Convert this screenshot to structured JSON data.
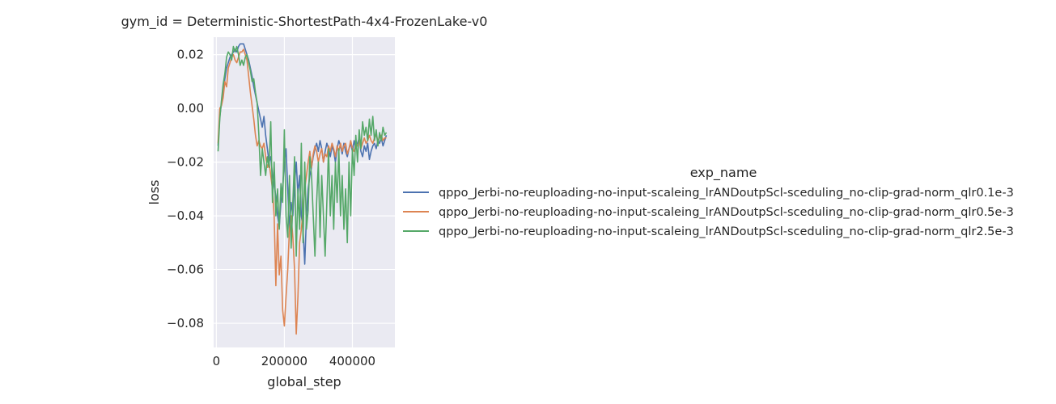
{
  "chart_data": {
    "type": "line",
    "title": "gym_id = Deterministic-ShortestPath-4x4-FrozenLake-v0",
    "xlabel": "global_step",
    "ylabel": "loss",
    "xlim": [
      -8000,
      525000
    ],
    "ylim": [
      -0.089,
      0.0265
    ],
    "xticks": [
      0,
      200000,
      400000
    ],
    "xtick_labels": [
      "0",
      "200000",
      "400000"
    ],
    "yticks": [
      0.02,
      0.0,
      -0.02,
      -0.04,
      -0.06,
      -0.08
    ],
    "ytick_labels": [
      "0.02",
      "0.00",
      "−0.02",
      "−0.04",
      "−0.06",
      "−0.08"
    ],
    "grid": true,
    "legend_title": "exp_name",
    "legend_position": "right",
    "series": [
      {
        "name": "qppo_Jerbi-no-reuploading-no-input-scaleing_lrANDoutpScl-sceduling_no-clip-grad-norm_qlr0.1e-3",
        "color": "#4c72b0",
        "x": [
          5000,
          10000,
          15000,
          20000,
          25000,
          30000,
          35000,
          40000,
          45000,
          50000,
          55000,
          60000,
          65000,
          70000,
          75000,
          80000,
          85000,
          90000,
          95000,
          100000,
          105000,
          110000,
          115000,
          120000,
          125000,
          130000,
          135000,
          140000,
          145000,
          150000,
          155000,
          160000,
          165000,
          170000,
          175000,
          180000,
          185000,
          190000,
          195000,
          200000,
          205000,
          210000,
          215000,
          220000,
          225000,
          230000,
          235000,
          240000,
          245000,
          250000,
          255000,
          260000,
          265000,
          270000,
          275000,
          280000,
          285000,
          290000,
          295000,
          300000,
          305000,
          310000,
          315000,
          320000,
          325000,
          330000,
          335000,
          340000,
          345000,
          350000,
          355000,
          360000,
          365000,
          370000,
          375000,
          380000,
          385000,
          390000,
          395000,
          400000,
          405000,
          410000,
          415000,
          420000,
          425000,
          430000,
          435000,
          440000,
          445000,
          450000,
          455000,
          460000,
          465000,
          470000,
          475000,
          480000,
          485000,
          490000,
          495000,
          500000
        ],
        "y": [
          -0.014,
          -0.003,
          0.002,
          0.006,
          0.011,
          0.015,
          0.017,
          0.019,
          0.02,
          0.021,
          0.022,
          0.021,
          0.023,
          0.024,
          0.024,
          0.024,
          0.022,
          0.02,
          0.018,
          0.015,
          0.012,
          0.008,
          0.005,
          0.002,
          -0.001,
          -0.004,
          -0.007,
          -0.003,
          -0.01,
          -0.015,
          -0.02,
          -0.018,
          -0.025,
          -0.028,
          -0.033,
          -0.04,
          -0.044,
          -0.035,
          -0.03,
          -0.02,
          -0.015,
          -0.03,
          -0.045,
          -0.035,
          -0.04,
          -0.028,
          -0.02,
          -0.032,
          -0.025,
          -0.04,
          -0.045,
          -0.058,
          -0.04,
          -0.03,
          -0.025,
          -0.022,
          -0.018,
          -0.015,
          -0.013,
          -0.016,
          -0.012,
          -0.015,
          -0.02,
          -0.016,
          -0.013,
          -0.015,
          -0.018,
          -0.014,
          -0.016,
          -0.02,
          -0.015,
          -0.012,
          -0.014,
          -0.017,
          -0.013,
          -0.016,
          -0.018,
          -0.015,
          -0.013,
          -0.016,
          -0.012,
          -0.015,
          -0.013,
          -0.011,
          -0.016,
          -0.018,
          -0.014,
          -0.016,
          -0.013,
          -0.019,
          -0.016,
          -0.014,
          -0.013,
          -0.015,
          -0.012,
          -0.013,
          -0.011,
          -0.014,
          -0.012,
          -0.01
        ]
      },
      {
        "name": "qppo_Jerbi-no-reuploading-no-input-scaleing_lrANDoutpScl-sceduling_no-clip-grad-norm_qlr0.5e-3",
        "color": "#dd8452",
        "x": [
          5000,
          10000,
          15000,
          20000,
          25000,
          30000,
          35000,
          40000,
          45000,
          50000,
          55000,
          60000,
          65000,
          70000,
          75000,
          80000,
          85000,
          90000,
          95000,
          100000,
          105000,
          110000,
          115000,
          120000,
          125000,
          130000,
          135000,
          140000,
          145000,
          150000,
          155000,
          160000,
          165000,
          170000,
          175000,
          180000,
          185000,
          190000,
          195000,
          200000,
          205000,
          210000,
          215000,
          220000,
          225000,
          230000,
          235000,
          240000,
          245000,
          250000,
          255000,
          260000,
          265000,
          270000,
          275000,
          280000,
          285000,
          290000,
          295000,
          300000,
          305000,
          310000,
          315000,
          320000,
          325000,
          330000,
          335000,
          340000,
          345000,
          350000,
          355000,
          360000,
          365000,
          370000,
          375000,
          380000,
          385000,
          390000,
          395000,
          400000,
          405000,
          410000,
          415000,
          420000,
          425000,
          430000,
          435000,
          440000,
          445000,
          450000,
          455000,
          460000,
          465000,
          470000,
          475000,
          480000,
          485000,
          490000,
          495000,
          500000
        ],
        "y": [
          -0.013,
          0.0,
          0.001,
          0.004,
          0.01,
          0.008,
          0.015,
          0.017,
          0.019,
          0.02,
          0.018,
          0.017,
          0.019,
          0.021,
          0.021,
          0.022,
          0.02,
          0.018,
          0.012,
          0.006,
          0.001,
          -0.004,
          -0.01,
          -0.014,
          -0.012,
          -0.014,
          -0.015,
          -0.013,
          -0.018,
          -0.022,
          -0.02,
          -0.025,
          -0.03,
          -0.04,
          -0.066,
          -0.043,
          -0.062,
          -0.055,
          -0.075,
          -0.081,
          -0.07,
          -0.06,
          -0.045,
          -0.04,
          -0.048,
          -0.06,
          -0.084,
          -0.07,
          -0.05,
          -0.045,
          -0.038,
          -0.03,
          -0.025,
          -0.02,
          -0.016,
          -0.022,
          -0.017,
          -0.014,
          -0.016,
          -0.02,
          -0.017,
          -0.015,
          -0.02,
          -0.017,
          -0.018,
          -0.014,
          -0.016,
          -0.013,
          -0.015,
          -0.018,
          -0.014,
          -0.016,
          -0.013,
          -0.016,
          -0.014,
          -0.013,
          -0.017,
          -0.015,
          -0.012,
          -0.015,
          -0.016,
          -0.013,
          -0.014,
          -0.012,
          -0.015,
          -0.013,
          -0.011,
          -0.013,
          -0.012,
          -0.01,
          -0.012,
          -0.013,
          -0.011,
          -0.01,
          -0.012,
          -0.011,
          -0.01,
          -0.012,
          -0.011,
          -0.011
        ]
      },
      {
        "name": "qppo_Jerbi-no-reuploading-no-input-scaleing_lrANDoutpScl-sceduling_no-clip-grad-norm_qlr2.5e-3",
        "color": "#55a868",
        "x": [
          5000,
          10000,
          15000,
          20000,
          25000,
          30000,
          35000,
          40000,
          45000,
          50000,
          55000,
          60000,
          65000,
          70000,
          75000,
          80000,
          85000,
          90000,
          95000,
          100000,
          105000,
          110000,
          115000,
          120000,
          125000,
          130000,
          135000,
          140000,
          145000,
          150000,
          155000,
          160000,
          165000,
          170000,
          175000,
          180000,
          185000,
          190000,
          195000,
          200000,
          205000,
          210000,
          215000,
          220000,
          225000,
          230000,
          235000,
          240000,
          245000,
          250000,
          255000,
          260000,
          265000,
          270000,
          275000,
          280000,
          285000,
          290000,
          295000,
          300000,
          305000,
          310000,
          315000,
          320000,
          325000,
          330000,
          335000,
          340000,
          345000,
          350000,
          355000,
          360000,
          365000,
          370000,
          375000,
          380000,
          385000,
          390000,
          395000,
          400000,
          405000,
          410000,
          415000,
          420000,
          425000,
          430000,
          435000,
          440000,
          445000,
          450000,
          455000,
          460000,
          465000,
          470000,
          475000,
          480000,
          485000,
          490000,
          495000,
          500000
        ],
        "y": [
          -0.016,
          -0.004,
          0.003,
          0.009,
          0.013,
          0.019,
          0.021,
          0.02,
          0.018,
          0.023,
          0.021,
          0.023,
          0.02,
          0.016,
          0.018,
          0.016,
          0.019,
          0.02,
          0.017,
          0.014,
          0.01,
          0.011,
          0.006,
          0.002,
          -0.01,
          -0.025,
          -0.015,
          -0.02,
          -0.025,
          -0.018,
          -0.022,
          -0.005,
          -0.035,
          -0.02,
          -0.04,
          -0.03,
          -0.045,
          -0.028,
          -0.035,
          -0.008,
          -0.04,
          -0.048,
          -0.025,
          -0.052,
          -0.035,
          -0.018,
          -0.055,
          -0.03,
          -0.045,
          -0.013,
          -0.05,
          -0.02,
          -0.045,
          -0.038,
          -0.018,
          -0.025,
          -0.04,
          -0.055,
          -0.035,
          -0.02,
          -0.048,
          -0.025,
          -0.04,
          -0.055,
          -0.035,
          -0.015,
          -0.04,
          -0.025,
          -0.045,
          -0.02,
          -0.035,
          -0.015,
          -0.04,
          -0.025,
          -0.045,
          -0.03,
          -0.05,
          -0.02,
          -0.04,
          -0.015,
          -0.025,
          -0.01,
          -0.02,
          -0.008,
          -0.015,
          -0.005,
          -0.01,
          -0.007,
          -0.012,
          -0.004,
          -0.01,
          -0.003,
          -0.012,
          -0.008,
          -0.014,
          -0.009,
          -0.012,
          -0.007,
          -0.01,
          -0.009
        ]
      }
    ]
  }
}
